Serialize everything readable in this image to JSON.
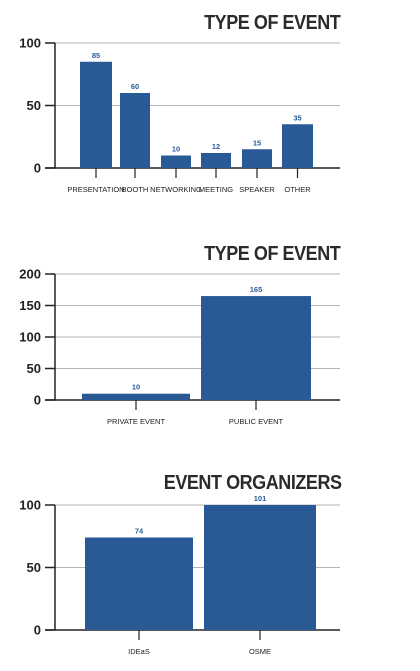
{
  "accent_color": "#2a5a96",
  "chart_data": [
    {
      "type": "bar",
      "title": "TYPE OF EVENT",
      "categories": [
        "PRESENTATION",
        "BOOTH",
        "NETWORKING",
        "MEETING",
        "SPEAKER",
        "OTHER"
      ],
      "values": [
        85,
        60,
        10,
        12,
        15,
        35
      ],
      "ylim": [
        0,
        100
      ],
      "yticks": [
        0,
        50,
        100
      ],
      "grid": true,
      "xlabel": "",
      "ylabel": ""
    },
    {
      "type": "bar",
      "title": "TYPE OF EVENT",
      "categories": [
        "PRIVATE EVENT",
        "PUBLIC EVENT"
      ],
      "values": [
        10,
        165
      ],
      "ylim": [
        0,
        200
      ],
      "yticks": [
        0,
        50,
        100,
        150,
        200
      ],
      "grid": true,
      "xlabel": "",
      "ylabel": ""
    },
    {
      "type": "bar",
      "title": "EVENT ORGANIZERS",
      "categories": [
        "IDEaS",
        "OSME"
      ],
      "values": [
        74,
        101
      ],
      "ylim": [
        0,
        100
      ],
      "yticks": [
        0,
        50,
        100
      ],
      "grid": true,
      "xlabel": "",
      "ylabel": ""
    }
  ]
}
